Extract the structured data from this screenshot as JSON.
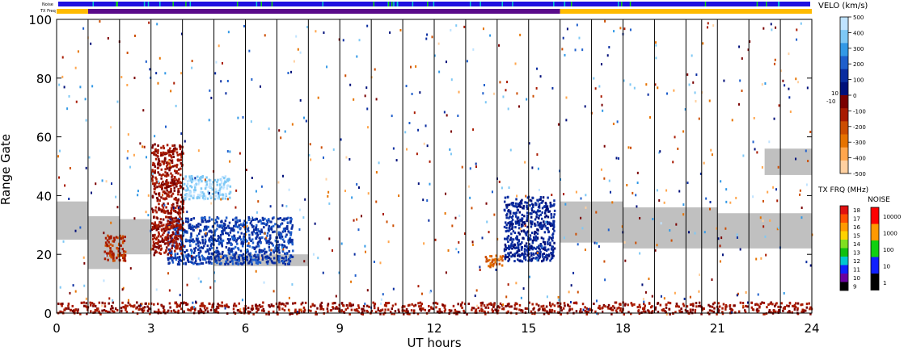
{
  "chart_data": {
    "type": "heatmap",
    "xlabel": "UT hours",
    "ylabel": "Range Gate",
    "xlim": [
      0,
      24
    ],
    "ylim": [
      0,
      100
    ],
    "x_ticks": [
      "0",
      "3",
      "6",
      "9",
      "12",
      "15",
      "18",
      "21",
      "24"
    ],
    "x_tick_values": [
      0,
      3,
      6,
      9,
      12,
      15,
      18,
      21,
      24
    ],
    "y_ticks": [
      "0",
      "20",
      "40",
      "60",
      "80",
      "100"
    ],
    "y_tick_values": [
      0,
      20,
      40,
      60,
      80,
      100
    ],
    "scan_boundaries_hours": [
      1,
      2,
      3,
      4,
      5,
      6,
      7,
      8,
      9,
      10,
      11,
      12,
      13,
      14,
      15,
      16,
      17,
      18,
      19,
      20,
      20.5,
      21,
      22,
      23
    ],
    "top_strips": {
      "noise_label": "Noise",
      "txfreq_label": "TX Freq",
      "txfreq_segments": [
        {
          "start": 0,
          "end": 1,
          "color": "#ffbb00"
        },
        {
          "start": 1,
          "end": 16,
          "color": "#5a0a8a"
        },
        {
          "start": 16,
          "end": 24,
          "color": "#ffbb00"
        }
      ]
    },
    "velocity_scale": {
      "title": "VELO (km/s)",
      "ticks": [
        "500",
        "400",
        "300",
        "200",
        "100",
        "0",
        "-100",
        "-200",
        "-300",
        "-400",
        "-500"
      ],
      "tick_values": [
        500,
        400,
        300,
        200,
        100,
        0,
        -100,
        -200,
        -300,
        -400,
        -500
      ],
      "center_labels": [
        "10",
        "-10"
      ],
      "colors_top_to_bottom": [
        "#bfe3ff",
        "#7ec8f5",
        "#3399e6",
        "#1f5fcc",
        "#0a2da0",
        "#00107a",
        "#7a0000",
        "#a81a00",
        "#cc4d00",
        "#e67300",
        "#ffa64d",
        "#ffd0a0"
      ]
    },
    "txfreq_scale": {
      "title": "TX FRQ (MHz)",
      "labels": [
        "18",
        "17",
        "16",
        "15",
        "14",
        "13",
        "12",
        "11",
        "10",
        "9"
      ],
      "colors": [
        "#e01010",
        "#ff5000",
        "#ff9900",
        "#ffd200",
        "#80e020",
        "#10c010",
        "#00c8d0",
        "#1020ff",
        "#6a00a0",
        "#000000"
      ]
    },
    "noise_scale": {
      "title": "NOISE",
      "labels": [
        "10000",
        "1000",
        "100",
        "10",
        "1"
      ],
      "colors": [
        "#ff0000",
        "#ff9900",
        "#10d010",
        "#1020ff",
        "#000000"
      ]
    },
    "ground_scatter_bands": [
      {
        "start": 0,
        "end": 1,
        "gate_low": 25,
        "gate_high": 38
      },
      {
        "start": 1,
        "end": 2,
        "gate_low": 15,
        "gate_high": 33
      },
      {
        "start": 2,
        "end": 3,
        "gate_low": 20,
        "gate_high": 32
      },
      {
        "start": 5,
        "end": 8,
        "gate_low": 16,
        "gate_high": 20
      },
      {
        "start": 16,
        "end": 18,
        "gate_low": 24,
        "gate_high": 38
      },
      {
        "start": 18,
        "end": 21,
        "gate_low": 22,
        "gate_high": 36
      },
      {
        "start": 21,
        "end": 24,
        "gate_low": 22,
        "gate_high": 34
      },
      {
        "start": 22.5,
        "end": 24,
        "gate_low": 47,
        "gate_high": 56
      }
    ],
    "velocity_features": [
      {
        "start": 3.5,
        "end": 7.5,
        "gate_low": 17,
        "gate_high": 33,
        "velocity": 150,
        "note": "positive patch"
      },
      {
        "start": 4.0,
        "end": 5.5,
        "gate_low": 39,
        "gate_high": 47,
        "velocity": 400
      },
      {
        "start": 14.2,
        "end": 15.8,
        "gate_low": 18,
        "gate_high": 40,
        "velocity": 100
      },
      {
        "start": 1.5,
        "end": 2.2,
        "gate_low": 18,
        "gate_high": 27,
        "velocity": -150
      },
      {
        "start": 3.0,
        "end": 4.0,
        "gate_low": 20,
        "gate_high": 58,
        "velocity": -100
      },
      {
        "start": 13.6,
        "end": 14.2,
        "gate_low": 16,
        "gate_high": 20,
        "velocity": -250
      },
      {
        "start": 0,
        "end": 24,
        "gate_low": 0,
        "gate_high": 4,
        "velocity": -100,
        "note": "near-range clutter"
      }
    ]
  }
}
